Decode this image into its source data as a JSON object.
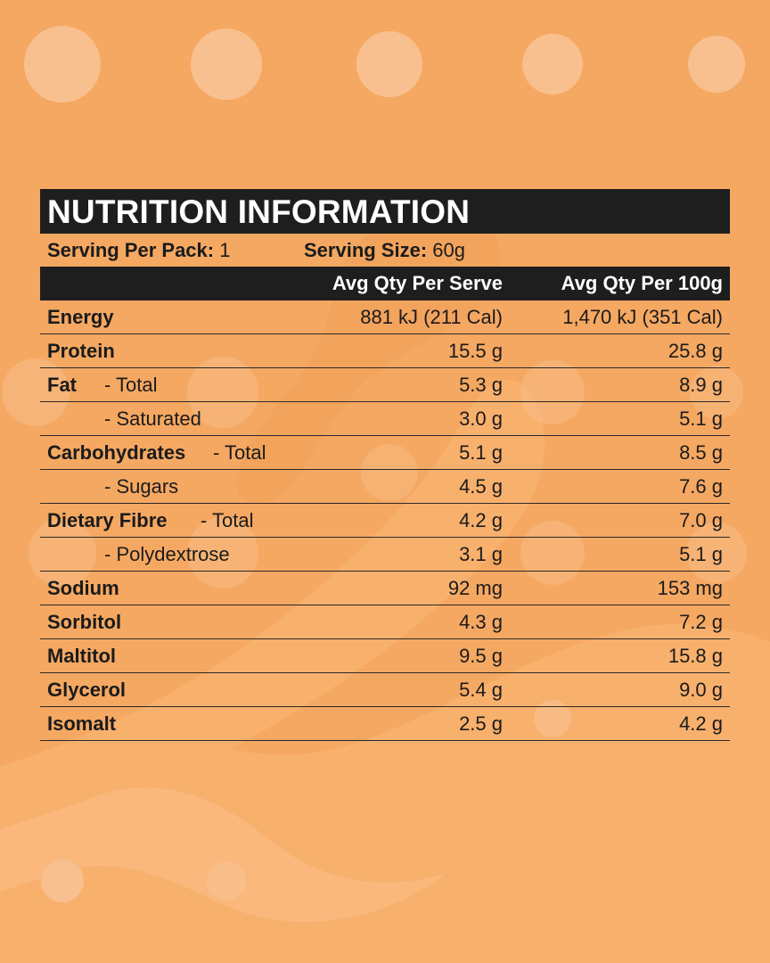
{
  "title": "NUTRITION INFORMATION",
  "serving": {
    "per_pack_label": "Serving Per Pack:",
    "per_pack_value": "1",
    "size_label": "Serving Size:",
    "size_value": "60g"
  },
  "columns": {
    "per_serve": "Avg Qty Per Serve",
    "per_100g": "Avg Qty Per 100g"
  },
  "rows": [
    {
      "name": "Energy",
      "sub": "",
      "per_serve": "881 kJ (211 Cal)",
      "per_100g": "1,470 kJ (351 Cal)"
    },
    {
      "name": "Protein",
      "sub": "",
      "per_serve": "15.5 g",
      "per_100g": "25.8 g"
    },
    {
      "name": "Fat",
      "sub": "- Total",
      "per_serve": "5.3 g",
      "per_100g": "8.9 g"
    },
    {
      "name": "",
      "sub": "- Saturated",
      "per_serve": "3.0 g",
      "per_100g": "5.1 g"
    },
    {
      "name": "Carbohydrates",
      "sub": "- Total",
      "per_serve": "5.1 g",
      "per_100g": "8.5 g"
    },
    {
      "name": "",
      "sub": "- Sugars",
      "per_serve": "4.5 g",
      "per_100g": "7.6 g"
    },
    {
      "name": "Dietary Fibre",
      "sub": "- Total",
      "per_serve": "4.2 g",
      "per_100g": "7.0 g"
    },
    {
      "name": "",
      "sub": "- Polydextrose",
      "per_serve": "3.1 g",
      "per_100g": "5.1 g"
    },
    {
      "name": "Sodium",
      "sub": "",
      "per_serve": "92 mg",
      "per_100g": "153 mg"
    },
    {
      "name": "Sorbitol",
      "sub": "",
      "per_serve": "4.3 g",
      "per_100g": "7.2 g"
    },
    {
      "name": "Maltitol",
      "sub": "",
      "per_serve": "9.5 g",
      "per_100g": "15.8 g"
    },
    {
      "name": "Glycerol",
      "sub": "",
      "per_serve": "5.4 g",
      "per_100g": "9.0 g"
    },
    {
      "name": "Isomalt",
      "sub": "",
      "per_serve": "2.5 g",
      "per_100g": "4.2 g"
    }
  ],
  "colors": {
    "background": "#f5a862",
    "bar": "#1e1e1e",
    "dots": "#f8c08e"
  }
}
